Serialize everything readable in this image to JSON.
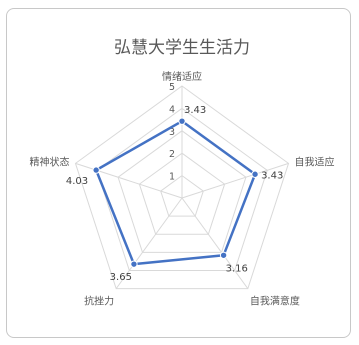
{
  "chart_data": {
    "type": "radar",
    "title": "弘慧大学生生活力",
    "categories": [
      "情绪适应",
      "自我适应",
      "自我满意度",
      "抗挫力",
      "精神状态"
    ],
    "series": [
      {
        "values": [
          3.43,
          3.43,
          3.16,
          3.65,
          4.03
        ]
      }
    ],
    "value_labels": [
      "3.43",
      "3.43",
      "3.16",
      "3.65",
      "4.03"
    ],
    "ticks": [
      "1",
      "2",
      "3",
      "4",
      "5"
    ],
    "rlim": [
      0,
      5
    ],
    "grid": true,
    "legend": "none",
    "colors": {
      "series": "#4472c4",
      "grid": "#d9d9d9",
      "text": "#595959"
    }
  }
}
